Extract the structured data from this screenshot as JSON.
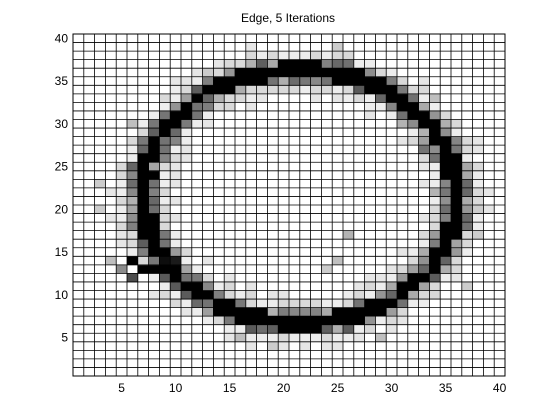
{
  "title": "Edge, 5 Iterations",
  "chart_data": {
    "type": "heatmap",
    "title": "Edge, 5 Iterations",
    "xlabel": "",
    "ylabel": "",
    "xlim": [
      1,
      40
    ],
    "ylim": [
      1,
      40
    ],
    "grid": true,
    "colormap": "gray",
    "value_scale": "0 = black (edge), 1 = white (background)",
    "x_tick_labels": [
      "5",
      "10",
      "15",
      "20",
      "25",
      "30",
      "35",
      "40"
    ],
    "y_tick_labels": [
      "5",
      "10",
      "15",
      "20",
      "25",
      "30",
      "35",
      "40"
    ],
    "edge_ring": {
      "center": [
        21.5,
        21.5
      ],
      "radius_x": 14.5,
      "radius_y": 14.8,
      "core_value": 0.0,
      "halo_value": 0.85,
      "background_value": 1.0
    },
    "cells": [
      {
        "x": 17,
        "y": 36,
        "v": 0.0
      },
      {
        "x": 18,
        "y": 36,
        "v": 0.0
      },
      {
        "x": 19,
        "y": 36,
        "v": 0.0
      },
      {
        "x": 20,
        "y": 36,
        "v": 0.0
      },
      {
        "x": 21,
        "y": 36,
        "v": 0.0
      },
      {
        "x": 22,
        "y": 36,
        "v": 0.0
      },
      {
        "x": 23,
        "y": 36,
        "v": 0.0
      },
      {
        "x": 24,
        "y": 36,
        "v": 0.0
      },
      {
        "x": 17,
        "y": 7,
        "v": 0.0
      },
      {
        "x": 18,
        "y": 7,
        "v": 0.0
      },
      {
        "x": 19,
        "y": 7,
        "v": 0.0
      },
      {
        "x": 20,
        "y": 7,
        "v": 0.0
      },
      {
        "x": 21,
        "y": 7,
        "v": 0.0
      },
      {
        "x": 22,
        "y": 7,
        "v": 0.0
      },
      {
        "x": 23,
        "y": 7,
        "v": 0.0
      },
      {
        "x": 24,
        "y": 7,
        "v": 0.0
      },
      {
        "x": 6,
        "y": 14,
        "v": 0.0
      },
      {
        "x": 7,
        "y": 13,
        "v": 0.0
      },
      {
        "x": 8,
        "y": 13,
        "v": 0.0
      },
      {
        "x": 9,
        "y": 14,
        "v": 0.05
      },
      {
        "x": 10,
        "y": 14,
        "v": 0.1
      },
      {
        "x": 6,
        "y": 12,
        "v": 0.3
      },
      {
        "x": 5,
        "y": 13,
        "v": 0.55
      },
      {
        "x": 27,
        "y": 34,
        "v": 0.35
      },
      {
        "x": 29,
        "y": 33,
        "v": 0.4
      },
      {
        "x": 13,
        "y": 33,
        "v": 0.4
      },
      {
        "x": 12,
        "y": 32,
        "v": 0.45
      },
      {
        "x": 33,
        "y": 27,
        "v": 0.45
      },
      {
        "x": 9,
        "y": 28,
        "v": 0.45
      },
      {
        "x": 8,
        "y": 22,
        "v": 0.5
      },
      {
        "x": 35,
        "y": 19,
        "v": 0.5
      },
      {
        "x": 33,
        "y": 13,
        "v": 0.4
      },
      {
        "x": 30,
        "y": 10,
        "v": 0.4
      },
      {
        "x": 27,
        "y": 9,
        "v": 0.45
      },
      {
        "x": 13,
        "y": 9,
        "v": 0.45
      },
      {
        "x": 10,
        "y": 11,
        "v": 0.35
      },
      {
        "x": 11,
        "y": 12,
        "v": 0.45
      },
      {
        "x": 26,
        "y": 17,
        "v": 0.7
      },
      {
        "x": 25,
        "y": 14,
        "v": 0.75
      },
      {
        "x": 24,
        "y": 13,
        "v": 0.8
      },
      {
        "x": 34,
        "y": 22,
        "v": 0.7
      },
      {
        "x": 8,
        "y": 25,
        "v": 0.65
      },
      {
        "x": 31,
        "y": 30,
        "v": 0.7
      },
      {
        "x": 29,
        "y": 5,
        "v": 0.75
      },
      {
        "x": 19,
        "y": 4,
        "v": 0.8
      },
      {
        "x": 16,
        "y": 5,
        "v": 0.75
      },
      {
        "x": 25,
        "y": 39,
        "v": 0.8
      },
      {
        "x": 13,
        "y": 36,
        "v": 0.8
      },
      {
        "x": 3,
        "y": 20,
        "v": 0.8
      },
      {
        "x": 3,
        "y": 23,
        "v": 0.8
      },
      {
        "x": 38,
        "y": 20,
        "v": 0.8
      },
      {
        "x": 38,
        "y": 17,
        "v": 0.8
      },
      {
        "x": 4,
        "y": 14,
        "v": 0.75
      },
      {
        "x": 6,
        "y": 30,
        "v": 0.75
      },
      {
        "x": 34,
        "y": 33,
        "v": 0.75
      },
      {
        "x": 37,
        "y": 11,
        "v": 0.8
      }
    ]
  }
}
